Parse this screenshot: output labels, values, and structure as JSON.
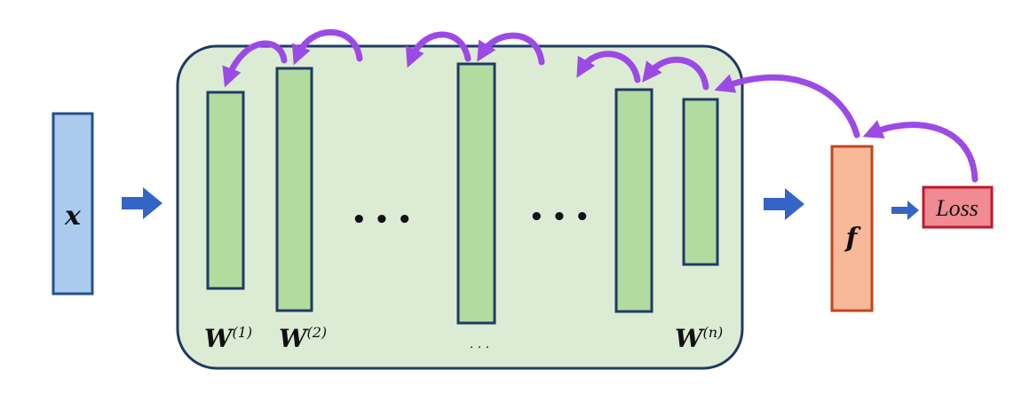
{
  "input": {
    "symbol": "x"
  },
  "model": {
    "weights": [
      {
        "base": "W",
        "sup": "(1)"
      },
      {
        "base": "W",
        "sup": "(2)"
      },
      {
        "base": "W",
        "sup": "(n)"
      }
    ],
    "middle_ellipsis": "• • •",
    "right_ellipsis": "• • •",
    "bottom_ellipsis": ". . ."
  },
  "output": {
    "symbol": "f"
  },
  "loss": {
    "label": "Loss"
  },
  "colors": {
    "input_fill": "#aacbee",
    "input_stroke": "#2a4e8c",
    "panel_fill": "#dcecd4",
    "panel_stroke": "#1f3b63",
    "layer_fill": "#b2dba0",
    "layer_stroke": "#1f3b63",
    "arrow_blue": "#3465c6",
    "backprop_purple": "#9c4ae6",
    "f_fill": "#f8b99a",
    "f_stroke": "#c0461c",
    "loss_fill": "#f08a93",
    "loss_stroke": "#c0182a"
  }
}
